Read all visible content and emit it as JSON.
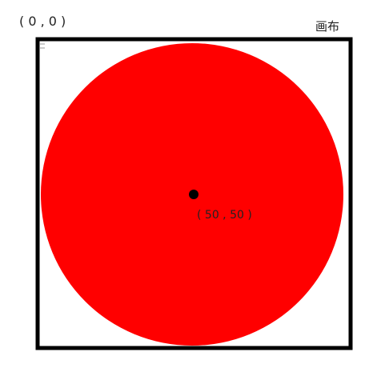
{
  "origin_label": "( 0 , 0 )",
  "canvas_label": "画布",
  "center_label": "( 50 , 50 )",
  "colors": {
    "circle_fill": "#ff0000",
    "border": "#000000",
    "center_dot": "#000000",
    "background": "#ffffff"
  }
}
